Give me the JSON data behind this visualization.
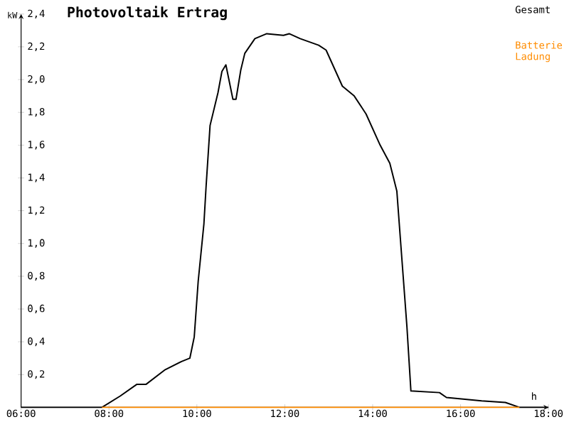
{
  "chart_data": {
    "type": "line",
    "title": "Photovoltaik Ertrag",
    "xlabel": "h",
    "ylabel": "kW",
    "xlim": [
      6,
      18
    ],
    "ylim": [
      0,
      2.4
    ],
    "xticks": [
      {
        "value": 6,
        "label": "06:00"
      },
      {
        "value": 8,
        "label": "08:00"
      },
      {
        "value": 10,
        "label": "10:00"
      },
      {
        "value": 12,
        "label": "12:00"
      },
      {
        "value": 14,
        "label": "14:00"
      },
      {
        "value": 16,
        "label": "16:00"
      },
      {
        "value": 18,
        "label": "18:00"
      }
    ],
    "yticks": [
      {
        "value": 0.2,
        "label": "0,2"
      },
      {
        "value": 0.4,
        "label": "0,4"
      },
      {
        "value": 0.6,
        "label": "0,6"
      },
      {
        "value": 0.8,
        "label": "0,8"
      },
      {
        "value": 1.0,
        "label": "1,0"
      },
      {
        "value": 1.2,
        "label": "1,2"
      },
      {
        "value": 1.4,
        "label": "1,4"
      },
      {
        "value": 1.6,
        "label": "1,6"
      },
      {
        "value": 1.8,
        "label": "1,8"
      },
      {
        "value": 2.0,
        "label": "2,0"
      },
      {
        "value": 2.2,
        "label": "2,2"
      },
      {
        "value": 2.4,
        "label": "2,4"
      }
    ],
    "grid": false,
    "legend": "top right",
    "marker": "none",
    "line_style": "solid",
    "series": [
      {
        "name": "Gesamt",
        "color": "#000000",
        "x": [
          6,
          7.84,
          8.26,
          8.63,
          8.84,
          9.28,
          9.65,
          9.84,
          9.94,
          10.03,
          10.16,
          10.21,
          10.3,
          10.48,
          10.57,
          10.66,
          10.82,
          10.89,
          11.0,
          11.09,
          11.32,
          11.59,
          11.97,
          12.1,
          12.35,
          12.77,
          12.94,
          13.31,
          13.58,
          13.85,
          14.17,
          14.39,
          14.55,
          14.63,
          14.78,
          14.87,
          15.52,
          15.68,
          16.48,
          17.02,
          17.34,
          18
        ],
        "values": [
          0,
          0,
          0.07,
          0.14,
          0.14,
          0.23,
          0.28,
          0.3,
          0.43,
          0.77,
          1.12,
          1.35,
          1.72,
          1.92,
          2.05,
          2.09,
          1.88,
          1.88,
          2.06,
          2.16,
          2.25,
          2.28,
          2.27,
          2.28,
          2.25,
          2.21,
          2.18,
          1.96,
          1.9,
          1.79,
          1.6,
          1.49,
          1.32,
          1.03,
          0.49,
          0.1,
          0.09,
          0.06,
          0.04,
          0.03,
          0,
          0
        ]
      },
      {
        "name": "Batterie Ladung",
        "color": "#ff8c00",
        "x": [
          7.84,
          17.34
        ],
        "values": [
          0,
          0
        ]
      }
    ]
  }
}
